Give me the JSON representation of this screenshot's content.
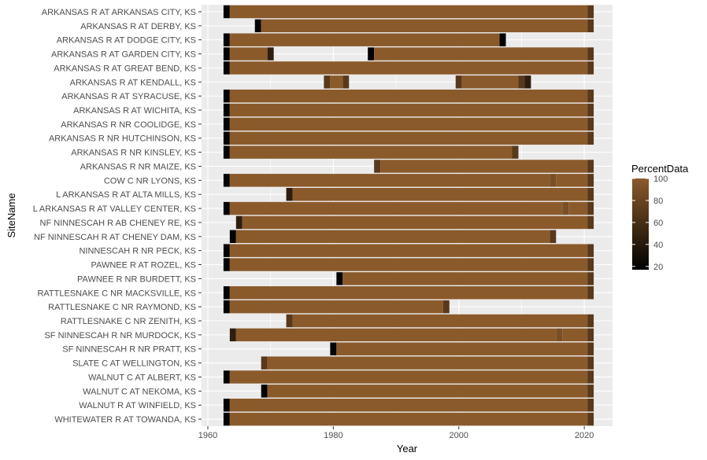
{
  "chart_data": {
    "type": "heatmap",
    "title": "",
    "xlabel": "Year",
    "ylabel": "SiteName",
    "xlim": [
      1959,
      2024.5
    ],
    "x_ticks": [
      1960,
      1980,
      2000,
      2020
    ],
    "x_tick_labels": [
      "1960",
      "1980",
      "2000",
      "2020"
    ],
    "grid": true,
    "legend": {
      "title": "PercentData",
      "position": "right",
      "ticks": [
        100,
        80,
        60,
        40,
        20
      ],
      "tick_labels": [
        "100",
        "80",
        "60",
        "40",
        "20"
      ],
      "color_low": "#000000",
      "color_high": "#8b5a2b",
      "range": [
        17,
        100
      ]
    },
    "colors": {
      "panel_bg": "#ebebeb",
      "grid": "#ffffff",
      "full": "#8b5a2b",
      "partial_dark": "#5e3c1f"
    },
    "sites": [
      {
        "name": "WHITEWATER R AT TOWANDA, KS",
        "segments": [
          [
            1962.5,
            1963.5,
            20
          ],
          [
            1963.5,
            2020.5,
            100
          ],
          [
            2020.5,
            2021.5,
            70
          ]
        ]
      },
      {
        "name": "WALNUT R AT WINFIELD, KS",
        "segments": [
          [
            1962.5,
            1963.5,
            20
          ],
          [
            1963.5,
            2020.5,
            100
          ],
          [
            2020.5,
            2021.5,
            70
          ]
        ]
      },
      {
        "name": "WALNUT C AT NEKOMA, KS",
        "segments": [
          [
            1968.5,
            1969.5,
            20
          ],
          [
            1969.5,
            2020.5,
            100
          ],
          [
            2020.5,
            2021.5,
            70
          ]
        ]
      },
      {
        "name": "WALNUT C AT ALBERT, KS",
        "segments": [
          [
            1962.5,
            1963.5,
            20
          ],
          [
            1963.5,
            2020.5,
            100
          ],
          [
            2020.5,
            2021.5,
            70
          ]
        ]
      },
      {
        "name": "SLATE C AT WELLINGTON, KS",
        "segments": [
          [
            1968.5,
            1969.5,
            70
          ],
          [
            1969.5,
            2020.5,
            100
          ],
          [
            2020.5,
            2021.5,
            70
          ]
        ]
      },
      {
        "name": "SF NINNESCAH R NR PRATT, KS",
        "segments": [
          [
            1979.5,
            1980.5,
            20
          ],
          [
            1980.5,
            2020.5,
            100
          ],
          [
            2020.5,
            2021.5,
            70
          ]
        ]
      },
      {
        "name": "SF NINNESCAH R NR MURDOCK, KS",
        "segments": [
          [
            1963.5,
            1964.5,
            45
          ],
          [
            1964.5,
            2015.5,
            100
          ],
          [
            2015.5,
            2016.5,
            90
          ],
          [
            2016.5,
            2020.5,
            100
          ],
          [
            2020.5,
            2021.5,
            70
          ]
        ]
      },
      {
        "name": "RATTLESNAKE C NR ZENITH, KS",
        "segments": [
          [
            1972.5,
            1973.5,
            70
          ],
          [
            1973.5,
            2020.5,
            100
          ],
          [
            2020.5,
            2021.5,
            70
          ]
        ]
      },
      {
        "name": "RATTLESNAKE C NR RAYMOND, KS",
        "segments": [
          [
            1962.5,
            1963.5,
            20
          ],
          [
            1963.5,
            1997.5,
            100
          ],
          [
            1997.5,
            1998.5,
            70
          ]
        ]
      },
      {
        "name": "RATTLESNAKE C NR MACKSVILLE, KS",
        "segments": [
          [
            1962.5,
            1963.5,
            20
          ],
          [
            1963.5,
            2020.5,
            100
          ],
          [
            2020.5,
            2021.5,
            70
          ]
        ]
      },
      {
        "name": "PAWNEE R NR BURDETT, KS",
        "segments": [
          [
            1980.5,
            1981.5,
            20
          ],
          [
            1981.5,
            2020.5,
            100
          ],
          [
            2020.5,
            2021.5,
            70
          ]
        ]
      },
      {
        "name": "PAWNEE R AT ROZEL, KS",
        "segments": [
          [
            1962.5,
            1963.5,
            20
          ],
          [
            1963.5,
            2020.5,
            100
          ],
          [
            2020.5,
            2021.5,
            70
          ]
        ]
      },
      {
        "name": "NINNESCAH R NR PECK, KS",
        "segments": [
          [
            1962.5,
            1963.5,
            20
          ],
          [
            1963.5,
            2020.5,
            100
          ],
          [
            2020.5,
            2021.5,
            70
          ]
        ]
      },
      {
        "name": "NF NINNESCAH R AT CHENEY DAM, KS",
        "segments": [
          [
            1963.5,
            1964.5,
            20
          ],
          [
            1964.5,
            2014.5,
            100
          ],
          [
            2014.5,
            2015.5,
            70
          ]
        ]
      },
      {
        "name": "NF NINNESCAH R AB CHENEY RE, KS",
        "segments": [
          [
            1964.5,
            1965.5,
            45
          ],
          [
            1965.5,
            2020.5,
            100
          ],
          [
            2020.5,
            2021.5,
            70
          ]
        ]
      },
      {
        "name": "L ARKANSAS R AT VALLEY CENTER, KS",
        "segments": [
          [
            1962.5,
            1963.5,
            20
          ],
          [
            1963.5,
            2016.5,
            100
          ],
          [
            2016.5,
            2017.5,
            90
          ],
          [
            2017.5,
            2020.5,
            100
          ],
          [
            2020.5,
            2021.5,
            70
          ]
        ]
      },
      {
        "name": "L ARKANSAS R AT ALTA MILLS, KS",
        "segments": [
          [
            1972.5,
            1973.5,
            45
          ],
          [
            1973.5,
            2020.5,
            100
          ],
          [
            2020.5,
            2021.5,
            70
          ]
        ]
      },
      {
        "name": "COW C NR LYONS, KS",
        "segments": [
          [
            1962.5,
            1963.5,
            20
          ],
          [
            1963.5,
            2014.5,
            100
          ],
          [
            2014.5,
            2015.5,
            90
          ],
          [
            2015.5,
            2020.5,
            100
          ],
          [
            2020.5,
            2021.5,
            70
          ]
        ]
      },
      {
        "name": "ARKANSAS R NR MAIZE, KS",
        "segments": [
          [
            1986.5,
            1987.5,
            70
          ],
          [
            1987.5,
            2020.5,
            100
          ],
          [
            2020.5,
            2021.5,
            70
          ]
        ]
      },
      {
        "name": "ARKANSAS R NR KINSLEY, KS",
        "segments": [
          [
            1962.5,
            1963.5,
            20
          ],
          [
            1963.5,
            2008.5,
            100
          ],
          [
            2008.5,
            2009.5,
            70
          ]
        ]
      },
      {
        "name": "ARKANSAS R NR HUTCHINSON, KS",
        "segments": [
          [
            1962.5,
            1963.5,
            20
          ],
          [
            1963.5,
            2020.5,
            100
          ],
          [
            2020.5,
            2021.5,
            70
          ]
        ]
      },
      {
        "name": "ARKANSAS R NR COOLIDGE, KS",
        "segments": [
          [
            1962.5,
            1963.5,
            20
          ],
          [
            1963.5,
            2020.5,
            100
          ],
          [
            2020.5,
            2021.5,
            70
          ]
        ]
      },
      {
        "name": "ARKANSAS R AT WICHITA, KS",
        "segments": [
          [
            1962.5,
            1963.5,
            20
          ],
          [
            1963.5,
            2020.5,
            100
          ],
          [
            2020.5,
            2021.5,
            70
          ]
        ]
      },
      {
        "name": "ARKANSAS R AT SYRACUSE, KS",
        "segments": [
          [
            1962.5,
            1963.5,
            20
          ],
          [
            1963.5,
            2020.5,
            100
          ],
          [
            2020.5,
            2021.5,
            70
          ]
        ]
      },
      {
        "name": "ARKANSAS R AT KENDALL, KS",
        "segments": [
          [
            1978.5,
            1979.5,
            70
          ],
          [
            1979.5,
            1981.5,
            100
          ],
          [
            1981.5,
            1982.5,
            70
          ],
          [
            1999.5,
            2000.5,
            70
          ],
          [
            2000.5,
            2009.5,
            100
          ],
          [
            2009.5,
            2010.5,
            70
          ],
          [
            2010.5,
            2011.5,
            45
          ]
        ]
      },
      {
        "name": "ARKANSAS R AT GREAT BEND, KS",
        "segments": [
          [
            1962.5,
            1963.5,
            20
          ],
          [
            1963.5,
            2020.5,
            100
          ],
          [
            2020.5,
            2021.5,
            70
          ]
        ]
      },
      {
        "name": "ARKANSAS R AT GARDEN CITY, KS",
        "segments": [
          [
            1962.5,
            1963.5,
            20
          ],
          [
            1963.5,
            1969.5,
            100
          ],
          [
            1969.5,
            1970.5,
            45
          ],
          [
            1985.5,
            1986.5,
            20
          ],
          [
            1986.5,
            2020.5,
            100
          ],
          [
            2020.5,
            2021.5,
            70
          ]
        ]
      },
      {
        "name": "ARKANSAS R AT DODGE CITY, KS",
        "segments": [
          [
            1962.5,
            1963.5,
            20
          ],
          [
            1963.5,
            2006.5,
            100
          ],
          [
            2006.5,
            2007.5,
            20
          ]
        ]
      },
      {
        "name": "ARKANSAS R AT DERBY, KS",
        "segments": [
          [
            1967.5,
            1968.5,
            20
          ],
          [
            1968.5,
            2020.5,
            100
          ],
          [
            2020.5,
            2021.5,
            70
          ]
        ]
      },
      {
        "name": "ARKANSAS R AT ARKANSAS CITY, KS",
        "segments": [
          [
            1962.5,
            1963.5,
            20
          ],
          [
            1963.5,
            2020.5,
            100
          ],
          [
            2020.5,
            2021.5,
            70
          ]
        ]
      }
    ]
  }
}
